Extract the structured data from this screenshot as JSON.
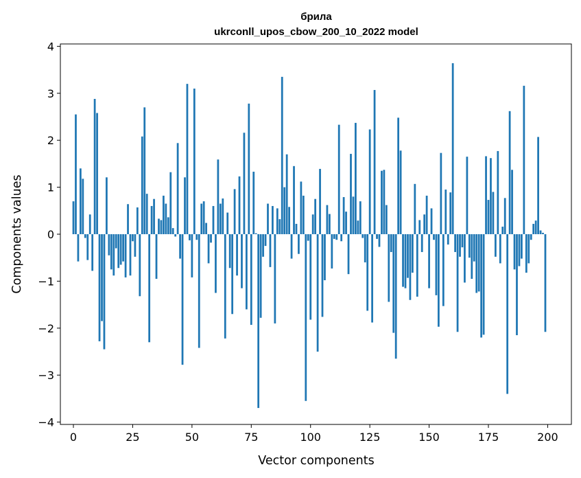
{
  "chart_data": {
    "type": "bar",
    "title": "брила",
    "subtitle": "ukrconll_upos_cbow_200_10_2022 model",
    "xlabel": "Vector components",
    "ylabel": "Components values",
    "xlim": [
      -5.5,
      210
    ],
    "ylim": [
      -4.05,
      4.05
    ],
    "xticks": [
      0,
      25,
      50,
      75,
      100,
      125,
      150,
      175,
      200
    ],
    "yticks": [
      -4,
      -3,
      -2,
      -1,
      0,
      1,
      2,
      3,
      4
    ],
    "bar_color": "#1f77b4",
    "grid": false,
    "x": [
      0,
      1,
      2,
      3,
      4,
      5,
      6,
      7,
      8,
      9,
      10,
      11,
      12,
      13,
      14,
      15,
      16,
      17,
      18,
      19,
      20,
      21,
      22,
      23,
      24,
      25,
      26,
      27,
      28,
      29,
      30,
      31,
      32,
      33,
      34,
      35,
      36,
      37,
      38,
      39,
      40,
      41,
      42,
      43,
      44,
      45,
      46,
      47,
      48,
      49,
      50,
      51,
      52,
      53,
      54,
      55,
      56,
      57,
      58,
      59,
      60,
      61,
      62,
      63,
      64,
      65,
      66,
      67,
      68,
      69,
      70,
      71,
      72,
      73,
      74,
      75,
      76,
      77,
      78,
      79,
      80,
      81,
      82,
      83,
      84,
      85,
      86,
      87,
      88,
      89,
      90,
      91,
      92,
      93,
      94,
      95,
      96,
      97,
      98,
      99,
      100,
      101,
      102,
      103,
      104,
      105,
      106,
      107,
      108,
      109,
      110,
      111,
      112,
      113,
      114,
      115,
      116,
      117,
      118,
      119,
      120,
      121,
      122,
      123,
      124,
      125,
      126,
      127,
      128,
      129,
      130,
      131,
      132,
      133,
      134,
      135,
      136,
      137,
      138,
      139,
      140,
      141,
      142,
      143,
      144,
      145,
      146,
      147,
      148,
      149,
      150,
      151,
      152,
      153,
      154,
      155,
      156,
      157,
      158,
      159,
      160,
      161,
      162,
      163,
      164,
      165,
      166,
      167,
      168,
      169,
      170,
      171,
      172,
      173,
      174,
      175,
      176,
      177,
      178,
      179,
      180,
      181,
      182,
      183,
      184,
      185,
      186,
      187,
      188,
      189,
      190,
      191,
      192,
      193,
      194,
      195,
      196,
      197,
      198,
      199
    ],
    "values": [
      0.7,
      2.55,
      -0.58,
      1.4,
      1.18,
      -0.08,
      -0.55,
      0.42,
      -0.78,
      2.88,
      2.58,
      -2.28,
      -1.85,
      -2.45,
      1.21,
      -0.45,
      -0.75,
      -0.88,
      -0.3,
      -0.72,
      -0.65,
      -0.58,
      -0.92,
      0.64,
      -0.88,
      -0.15,
      -0.48,
      0.57,
      -1.32,
      2.08,
      2.7,
      0.86,
      -2.3,
      0.6,
      0.75,
      -0.95,
      0.33,
      0.3,
      0.82,
      0.65,
      0.36,
      1.32,
      0.13,
      -0.05,
      1.94,
      -0.52,
      -2.78,
      1.21,
      3.2,
      -0.13,
      -0.92,
      3.1,
      -0.12,
      -2.42,
      0.65,
      0.7,
      0.24,
      -0.62,
      -0.18,
      0.6,
      -1.25,
      1.59,
      0.65,
      0.76,
      -2.22,
      0.46,
      -0.72,
      -1.7,
      0.96,
      -0.88,
      1.23,
      -1.15,
      2.16,
      -1.6,
      2.78,
      -1.93,
      1.33,
      0.02,
      -3.7,
      -1.78,
      -0.48,
      -0.25,
      0.65,
      -0.7,
      0.6,
      -1.9,
      0.55,
      0.32,
      3.35,
      1.0,
      1.7,
      0.58,
      -0.52,
      1.45,
      0.22,
      -0.42,
      1.12,
      0.82,
      -3.55,
      -0.14,
      -1.82,
      0.42,
      0.75,
      -2.5,
      1.39,
      -1.76,
      -0.98,
      0.62,
      0.43,
      -0.73,
      -0.1,
      -0.12,
      2.33,
      -0.15,
      0.79,
      0.48,
      -0.85,
      1.71,
      0.8,
      2.37,
      0.29,
      0.7,
      -0.08,
      -0.6,
      -1.63,
      2.23,
      -1.88,
      3.07,
      -0.1,
      -0.27,
      1.35,
      1.37,
      0.62,
      -1.44,
      -0.38,
      -2.1,
      -2.65,
      2.48,
      1.78,
      -1.12,
      -1.15,
      -0.93,
      -1.4,
      -0.82,
      1.07,
      -1.33,
      0.3,
      -0.38,
      0.42,
      0.82,
      -1.15,
      0.55,
      -0.12,
      -1.3,
      -1.97,
      1.73,
      -1.53,
      0.95,
      -0.22,
      0.89,
      3.64,
      -0.38,
      -2.08,
      -0.48,
      -0.28,
      -1.03,
      1.65,
      -0.5,
      -0.95,
      -0.58,
      -1.25,
      -1.22,
      -2.2,
      -2.14,
      1.66,
      0.73,
      1.62,
      0.9,
      -0.48,
      1.77,
      -0.62,
      0.16,
      0.77,
      -3.4,
      2.62,
      1.37,
      -0.75,
      -2.15,
      -0.68,
      -0.52,
      3.16,
      -0.82,
      -0.62,
      -0.12,
      0.22,
      0.29,
      2.07,
      0.08,
      0.03,
      -2.08
    ]
  }
}
